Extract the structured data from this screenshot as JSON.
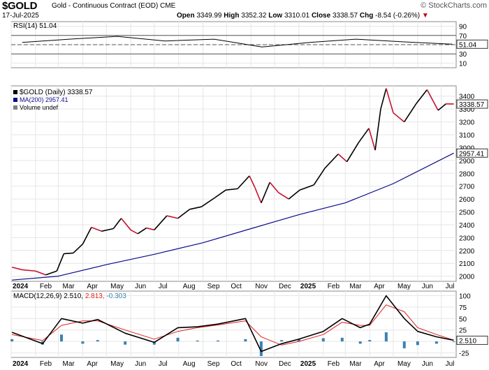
{
  "header": {
    "symbol": "$GOLD",
    "description": "Gold - Continuous Contract (EOD)",
    "exchange": "CME",
    "date": "17-Jul-2025",
    "open_label": "Open",
    "open": "3349.99",
    "high_label": "High",
    "high": "3352.32",
    "low_label": "Low",
    "low": "3310.01",
    "close_label": "Close",
    "close": "3338.57",
    "chg_label": "Chg",
    "chg": "-8.54 (-0.26%)",
    "chg_arrow": "▼",
    "credit": "© StockCharts.com"
  },
  "colors": {
    "price": "#000000",
    "down": "#c8102e",
    "ma": "#0a0a8a",
    "rsi": "#000000",
    "rsi_fill": "#3e7a3e",
    "macd": "#000000",
    "signal": "#e02020",
    "hist": "#3a82b0"
  },
  "chart_data": [
    {
      "type": "line",
      "panel": "RSI",
      "title": "RSI(14) 51.04",
      "last_value": "51.04",
      "yticks": [
        90,
        70,
        50,
        30,
        10
      ],
      "reference_lines": [
        70,
        50,
        30
      ],
      "ylim": [
        0,
        100
      ],
      "x": [
        "2024-01",
        "2024-03",
        "2024-05",
        "2024-07",
        "2024-09",
        "2024-11",
        "2025-01",
        "2025-03",
        "2025-05",
        "2025-07"
      ],
      "values": [
        55,
        62,
        68,
        58,
        62,
        45,
        55,
        62,
        56,
        51
      ]
    },
    {
      "type": "line",
      "panel": "Price",
      "title": "$GOLD (Daily) 3338.57",
      "last_value": "3338.57",
      "legend": [
        {
          "label": "$GOLD (Daily) 3338.57",
          "color": "#000000"
        },
        {
          "label": "MA(200) 2957.41",
          "color": "#0a0a8a"
        },
        {
          "label": "Volume undef",
          "color": "#808080"
        }
      ],
      "yticks": [
        3400,
        3300,
        3200,
        3100,
        3000,
        2900,
        2800,
        2700,
        2600,
        2500,
        2400,
        2300,
        2200,
        2100,
        2000
      ],
      "ylim": [
        1960,
        3480
      ],
      "xticks": [
        "2024",
        "Feb",
        "Mar",
        "Apr",
        "May",
        "Jun",
        "Jul",
        "Aug",
        "Sep",
        "Oct",
        "Nov",
        "Dec",
        "2025",
        "Feb",
        "Mar",
        "Apr",
        "May",
        "Jun",
        "Jul"
      ],
      "series": [
        {
          "name": "$GOLD (Daily)",
          "x": [
            "2024-01-02",
            "2024-01-15",
            "2024-02-01",
            "2024-02-14",
            "2024-02-28",
            "2024-03-08",
            "2024-03-20",
            "2024-04-01",
            "2024-04-12",
            "2024-04-25",
            "2024-05-10",
            "2024-05-20",
            "2024-06-01",
            "2024-06-10",
            "2024-06-21",
            "2024-07-01",
            "2024-07-17",
            "2024-07-31",
            "2024-08-15",
            "2024-08-30",
            "2024-09-16",
            "2024-09-30",
            "2024-10-15",
            "2024-10-30",
            "2024-11-06",
            "2024-11-14",
            "2024-11-25",
            "2024-12-06",
            "2024-12-19",
            "2025-01-02",
            "2025-01-20",
            "2025-02-03",
            "2025-02-20",
            "2025-03-03",
            "2025-03-18",
            "2025-03-31",
            "2025-04-08",
            "2025-04-15",
            "2025-04-22",
            "2025-05-01",
            "2025-05-15",
            "2025-05-30",
            "2025-06-13",
            "2025-06-27",
            "2025-07-07",
            "2025-07-17"
          ],
          "values": [
            2070,
            2050,
            2040,
            2010,
            2040,
            2175,
            2180,
            2250,
            2380,
            2350,
            2370,
            2450,
            2360,
            2330,
            2375,
            2360,
            2470,
            2450,
            2520,
            2540,
            2610,
            2670,
            2680,
            2780,
            2690,
            2570,
            2730,
            2650,
            2600,
            2670,
            2710,
            2840,
            2950,
            2890,
            3040,
            3150,
            2980,
            3300,
            3460,
            3270,
            3200,
            3340,
            3450,
            3290,
            3340,
            3339
          ]
        },
        {
          "name": "MA(200)",
          "x": [
            "2024-01-02",
            "2024-03-01",
            "2024-05-01",
            "2024-07-01",
            "2024-09-01",
            "2024-11-01",
            "2025-01-02",
            "2025-03-01",
            "2025-05-01",
            "2025-07-17"
          ],
          "values": [
            1970,
            2000,
            2090,
            2170,
            2260,
            2370,
            2480,
            2570,
            2720,
            2957
          ]
        }
      ]
    },
    {
      "type": "line",
      "panel": "MACD",
      "title": "MACD(12,26,9)",
      "macd_value": "2.510",
      "signal_value": "2.813",
      "hist_value": "-0.303",
      "last_value": "2.510",
      "yticks": [
        100,
        75,
        50,
        25,
        0,
        -25
      ],
      "ylim": [
        -35,
        110
      ],
      "xticks": [
        "2024",
        "Feb",
        "Mar",
        "Apr",
        "May",
        "Jun",
        "Jul",
        "Aug",
        "Sep",
        "Oct",
        "Nov",
        "Dec",
        "2025",
        "Feb",
        "Mar",
        "Apr",
        "May",
        "Jun",
        "Jul"
      ],
      "series": [
        {
          "name": "MACD",
          "x": [
            "2024-01-02",
            "2024-02-10",
            "2024-03-05",
            "2024-04-01",
            "2024-04-20",
            "2024-05-25",
            "2024-07-01",
            "2024-07-31",
            "2024-08-25",
            "2024-09-20",
            "2024-10-25",
            "2024-11-14",
            "2024-12-10",
            "2025-01-01",
            "2025-02-01",
            "2025-02-25",
            "2025-03-20",
            "2025-04-01",
            "2025-04-22",
            "2025-05-15",
            "2025-06-01",
            "2025-06-25",
            "2025-07-17"
          ],
          "values": [
            20,
            -5,
            50,
            40,
            48,
            18,
            -2,
            30,
            32,
            38,
            50,
            -22,
            -5,
            5,
            22,
            50,
            30,
            38,
            100,
            50,
            22,
            10,
            2.5
          ]
        },
        {
          "name": "Signal",
          "x": [
            "2024-01-02",
            "2024-02-10",
            "2024-03-05",
            "2024-04-01",
            "2024-04-20",
            "2024-05-25",
            "2024-07-01",
            "2024-07-31",
            "2024-08-25",
            "2024-09-20",
            "2024-10-25",
            "2024-11-14",
            "2024-12-10",
            "2025-01-01",
            "2025-02-01",
            "2025-02-25",
            "2025-03-20",
            "2025-04-01",
            "2025-04-22",
            "2025-05-15",
            "2025-06-01",
            "2025-06-25",
            "2025-07-17"
          ],
          "values": [
            15,
            2,
            35,
            45,
            45,
            25,
            5,
            22,
            30,
            36,
            45,
            10,
            -8,
            0,
            15,
            42,
            35,
            35,
            80,
            65,
            30,
            15,
            2.8
          ]
        },
        {
          "name": "Histogram",
          "x": [
            "2024-01-02",
            "2024-02-10",
            "2024-03-05",
            "2024-04-01",
            "2024-04-20",
            "2024-05-25",
            "2024-07-01",
            "2024-07-31",
            "2024-08-25",
            "2024-09-20",
            "2024-10-25",
            "2024-11-14",
            "2024-12-10",
            "2025-01-01",
            "2025-02-01",
            "2025-02-25",
            "2025-03-20",
            "2025-04-01",
            "2025-04-22",
            "2025-05-15",
            "2025-06-01",
            "2025-06-25",
            "2025-07-17"
          ],
          "values": [
            5,
            -7,
            15,
            -5,
            3,
            -7,
            -7,
            8,
            2,
            2,
            5,
            -32,
            3,
            5,
            7,
            8,
            -5,
            3,
            20,
            -15,
            -8,
            -5,
            -0.3
          ]
        }
      ]
    }
  ]
}
